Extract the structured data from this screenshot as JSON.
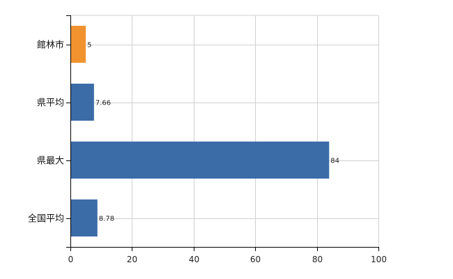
{
  "chart_data": {
    "type": "bar",
    "orientation": "horizontal",
    "categories": [
      "館林市",
      "県平均",
      "県最大",
      "全国平均"
    ],
    "values": [
      5,
      7.66,
      84,
      8.78
    ],
    "value_labels": [
      "5",
      "7.66",
      "84",
      "8.78"
    ],
    "bar_colors": [
      "#f0932f",
      "#3c6ca8",
      "#3c6ca8",
      "#3c6ca8"
    ],
    "xlim": [
      0,
      100
    ],
    "x_ticks": [
      0,
      20,
      40,
      60,
      80,
      100
    ],
    "grid": true,
    "title": "",
    "xlabel": "",
    "ylabel": ""
  }
}
